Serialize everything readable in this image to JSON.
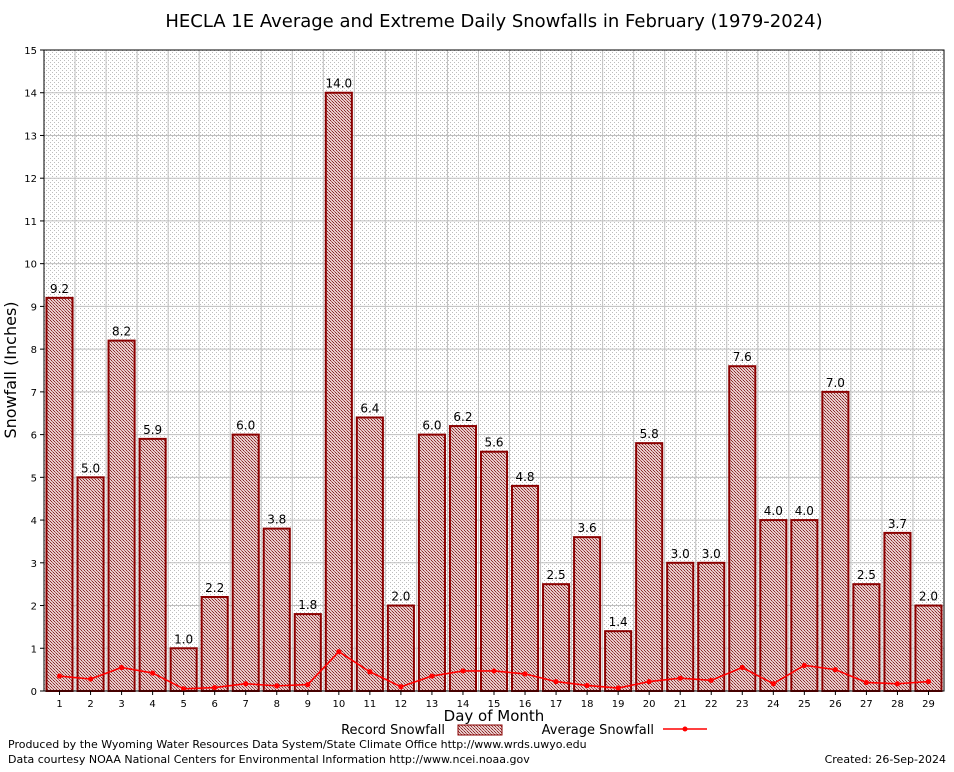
{
  "chart_data": {
    "type": "bar",
    "title": "HECLA 1E Average and Extreme Daily Snowfalls in February (1979-2024)",
    "xlabel": "Day of Month",
    "ylabel": "Snowfall (Inches)",
    "ylim": [
      0,
      15
    ],
    "yticks": [
      "0",
      "1",
      "2",
      "3",
      "4",
      "5",
      "6",
      "7",
      "8",
      "9",
      "10",
      "11",
      "12",
      "13",
      "14",
      "15"
    ],
    "grid": true,
    "legend_position": "bottom",
    "categories": [
      "1",
      "2",
      "3",
      "4",
      "5",
      "6",
      "7",
      "8",
      "9",
      "10",
      "11",
      "12",
      "13",
      "14",
      "15",
      "16",
      "17",
      "18",
      "19",
      "20",
      "21",
      "22",
      "23",
      "24",
      "25",
      "26",
      "27",
      "28",
      "29"
    ],
    "series": [
      {
        "name": "Record Snowfall",
        "kind": "bar",
        "values": [
          9.2,
          5.0,
          8.2,
          5.9,
          1.0,
          2.2,
          6.0,
          3.8,
          1.8,
          14.0,
          6.4,
          2.0,
          6.0,
          6.2,
          5.6,
          4.8,
          2.5,
          3.6,
          1.4,
          5.8,
          3.0,
          3.0,
          7.6,
          4.0,
          4.0,
          7.0,
          2.5,
          3.7,
          2.0
        ],
        "labels": [
          "9.2",
          "5.0",
          "8.2",
          "5.9",
          "1.0",
          "2.2",
          "6.0",
          "3.8",
          "1.8",
          "14.0",
          "6.4",
          "2.0",
          "6.0",
          "6.2",
          "5.6",
          "4.8",
          "2.5",
          "3.6",
          "1.4",
          "5.8",
          "3.0",
          "3.0",
          "7.6",
          "4.0",
          "4.0",
          "7.0",
          "2.5",
          "3.7",
          "2.0"
        ]
      },
      {
        "name": "Average Snowfall",
        "kind": "line",
        "values": [
          0.35,
          0.28,
          0.55,
          0.42,
          0.05,
          0.08,
          0.17,
          0.12,
          0.15,
          0.92,
          0.45,
          0.1,
          0.35,
          0.47,
          0.47,
          0.4,
          0.22,
          0.13,
          0.07,
          0.22,
          0.3,
          0.25,
          0.55,
          0.17,
          0.6,
          0.5,
          0.2,
          0.17,
          0.22
        ]
      }
    ],
    "colors": {
      "bar_fill": "#c9a3a3",
      "bar_stroke": "#8b0000",
      "line": "#ff0000",
      "grid": "#c0c0c0"
    }
  },
  "legend": {
    "record_label": "Record Snowfall",
    "average_label": "Average Snowfall"
  },
  "footer": {
    "line1": "Produced by the Wyoming Water Resources Data System/State Climate Office http://www.wrds.uwyo.edu",
    "line2": "Data courtesy NOAA National Centers for Environmental Information http://www.ncei.noaa.gov",
    "created": "Created:  26-Sep-2024"
  }
}
